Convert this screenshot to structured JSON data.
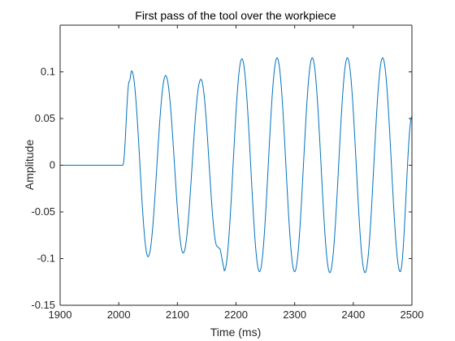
{
  "chart_data": {
    "type": "line",
    "title": "First pass of the tool over the workpiece",
    "xlabel": "Time (ms)",
    "ylabel": "Amplitude",
    "xlim": [
      1900,
      2500
    ],
    "ylim": [
      -0.15,
      0.15
    ],
    "xticks": [
      1900,
      2000,
      2100,
      2200,
      2300,
      2400,
      2500
    ],
    "yticks": [
      -0.15,
      -0.1,
      -0.05,
      0,
      0.05,
      0.1
    ],
    "xtick_labels": [
      "1900",
      "2000",
      "2100",
      "2200",
      "2300",
      "2400",
      "2500"
    ],
    "ytick_labels": [
      "-0.15",
      "-0.1",
      "-0.05",
      "0",
      "0.05",
      "0.1"
    ],
    "grid": false,
    "line_color": "#0072BD",
    "series": [
      {
        "x": [
          1900,
          2007,
          2018,
          2022,
          2050,
          2080,
          2110,
          2140,
          2168,
          2173,
          2180,
          2210,
          2240,
          2270,
          2300,
          2330,
          2360,
          2390,
          2420,
          2450,
          2480,
          2500
        ],
        "values": [
          0,
          0,
          0.09,
          0.101,
          -0.098,
          0.096,
          -0.094,
          0.092,
          -0.087,
          -0.09,
          -0.113,
          0.114,
          -0.114,
          0.115,
          -0.114,
          0.115,
          -0.115,
          0.115,
          -0.115,
          0.115,
          -0.114,
          0.052
        ]
      }
    ]
  }
}
